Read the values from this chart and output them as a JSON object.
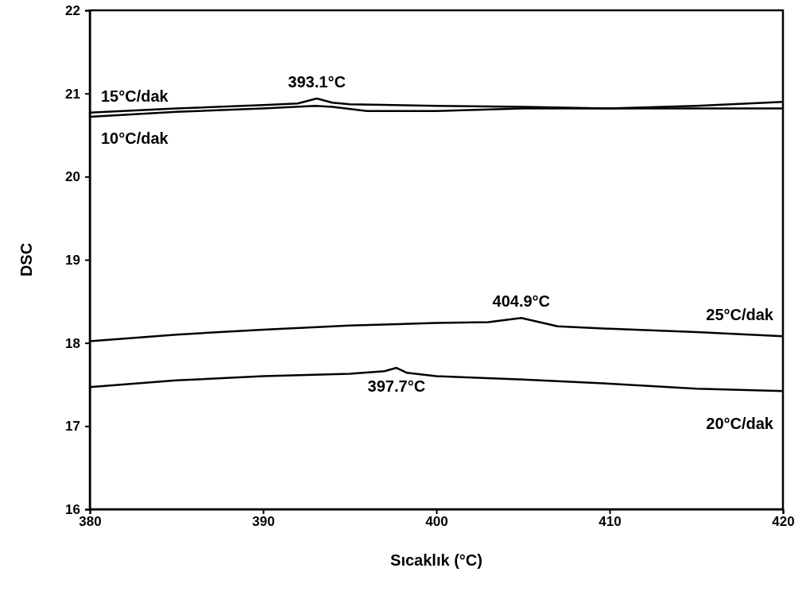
{
  "chart_data": {
    "type": "line",
    "xlabel": "Sıcaklık (°C)",
    "ylabel": "DSC",
    "xlim": [
      380,
      420
    ],
    "ylim": [
      16,
      22
    ],
    "xticks": [
      380,
      390,
      400,
      410,
      420
    ],
    "yticks": [
      16,
      17,
      18,
      19,
      20,
      21,
      22
    ],
    "grid": false,
    "marker": "none",
    "line_style": "solid",
    "series": [
      {
        "name": "15°C/dak",
        "color": "#000000",
        "x": [
          380,
          385,
          390,
          392,
          393.1,
          394,
          395,
          400,
          405,
          410,
          415,
          420
        ],
        "values": [
          20.77,
          20.82,
          20.86,
          20.88,
          20.94,
          20.89,
          20.87,
          20.85,
          20.84,
          20.82,
          20.85,
          20.9
        ]
      },
      {
        "name": "10°C/dak",
        "color": "#000000",
        "x": [
          380,
          385,
          390,
          393,
          394,
          396,
          400,
          405,
          410,
          415,
          420
        ],
        "values": [
          20.72,
          20.78,
          20.82,
          20.85,
          20.84,
          20.79,
          20.79,
          20.82,
          20.82,
          20.82,
          20.82
        ]
      },
      {
        "name": "25°C/dak",
        "color": "#000000",
        "x": [
          380,
          385,
          390,
          395,
          400,
          403,
          404.9,
          407,
          410,
          415,
          420
        ],
        "values": [
          18.02,
          18.1,
          18.16,
          18.21,
          18.24,
          18.25,
          18.3,
          18.2,
          18.17,
          18.13,
          18.08
        ]
      },
      {
        "name": "20°C/dak",
        "color": "#000000",
        "x": [
          380,
          385,
          390,
          395,
          397,
          397.7,
          398.3,
          400,
          405,
          410,
          415,
          420
        ],
        "values": [
          17.47,
          17.55,
          17.6,
          17.63,
          17.66,
          17.7,
          17.64,
          17.6,
          17.56,
          17.51,
          17.45,
          17.42
        ]
      }
    ],
    "annotations": [
      {
        "text": "393.1°C",
        "x": 393.1,
        "y": 20.94
      },
      {
        "text": "404.9°C",
        "x": 404.9,
        "y": 18.3
      },
      {
        "text": "397.7°C",
        "x": 397.7,
        "y": 17.7
      }
    ]
  }
}
